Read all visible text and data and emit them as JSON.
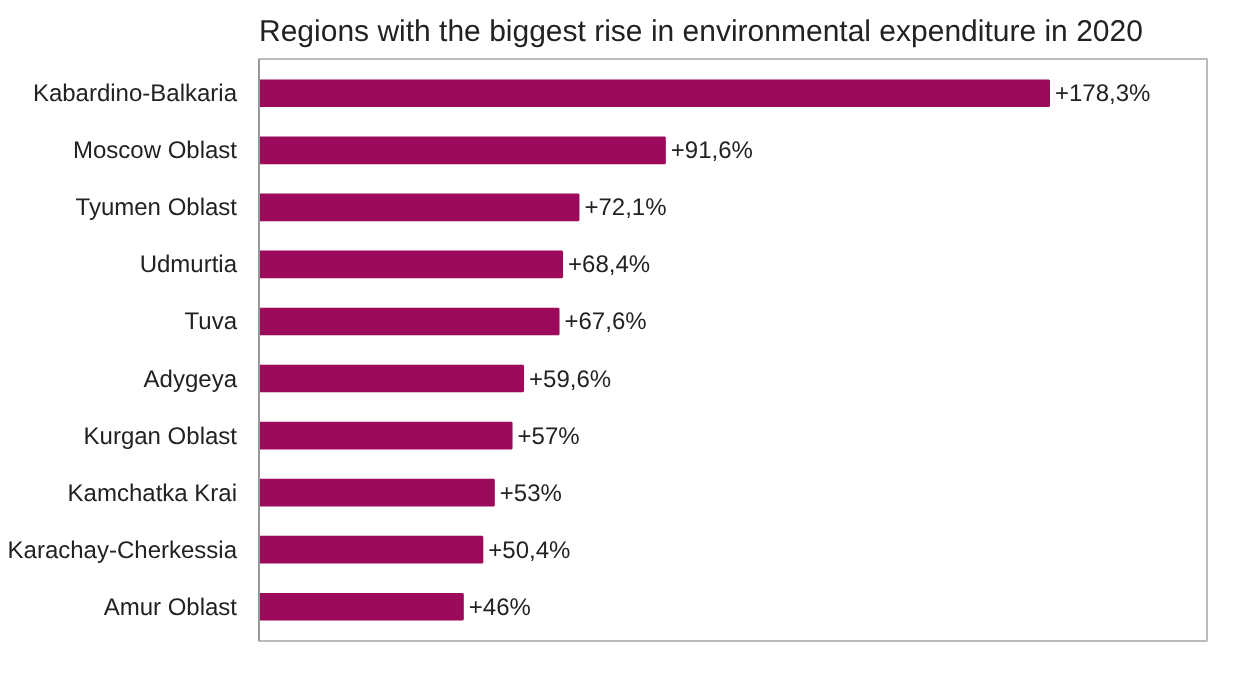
{
  "chart_data": {
    "type": "bar",
    "orientation": "horizontal",
    "title": "Regions with the biggest rise in environmental expenditure in 2020",
    "categories": [
      "Kabardino-Balkaria",
      "Moscow Oblast",
      "Tyumen Oblast",
      "Udmurtia",
      "Tuva",
      "Adygeya",
      "Kurgan Oblast",
      "Kamchatka Krai",
      "Karachay-Cherkessia",
      "Amur Oblast"
    ],
    "values": [
      178.3,
      91.6,
      72.1,
      68.4,
      67.6,
      59.6,
      57,
      53,
      50.4,
      46
    ],
    "value_labels": [
      "+178,3%",
      "+91,6%",
      "+72,1%",
      "+68,4%",
      "+67,6%",
      "+59,6%",
      "+57%",
      "+53%",
      "+50,4%",
      "+46%"
    ],
    "color": "#9c0a5c",
    "grid": false
  }
}
